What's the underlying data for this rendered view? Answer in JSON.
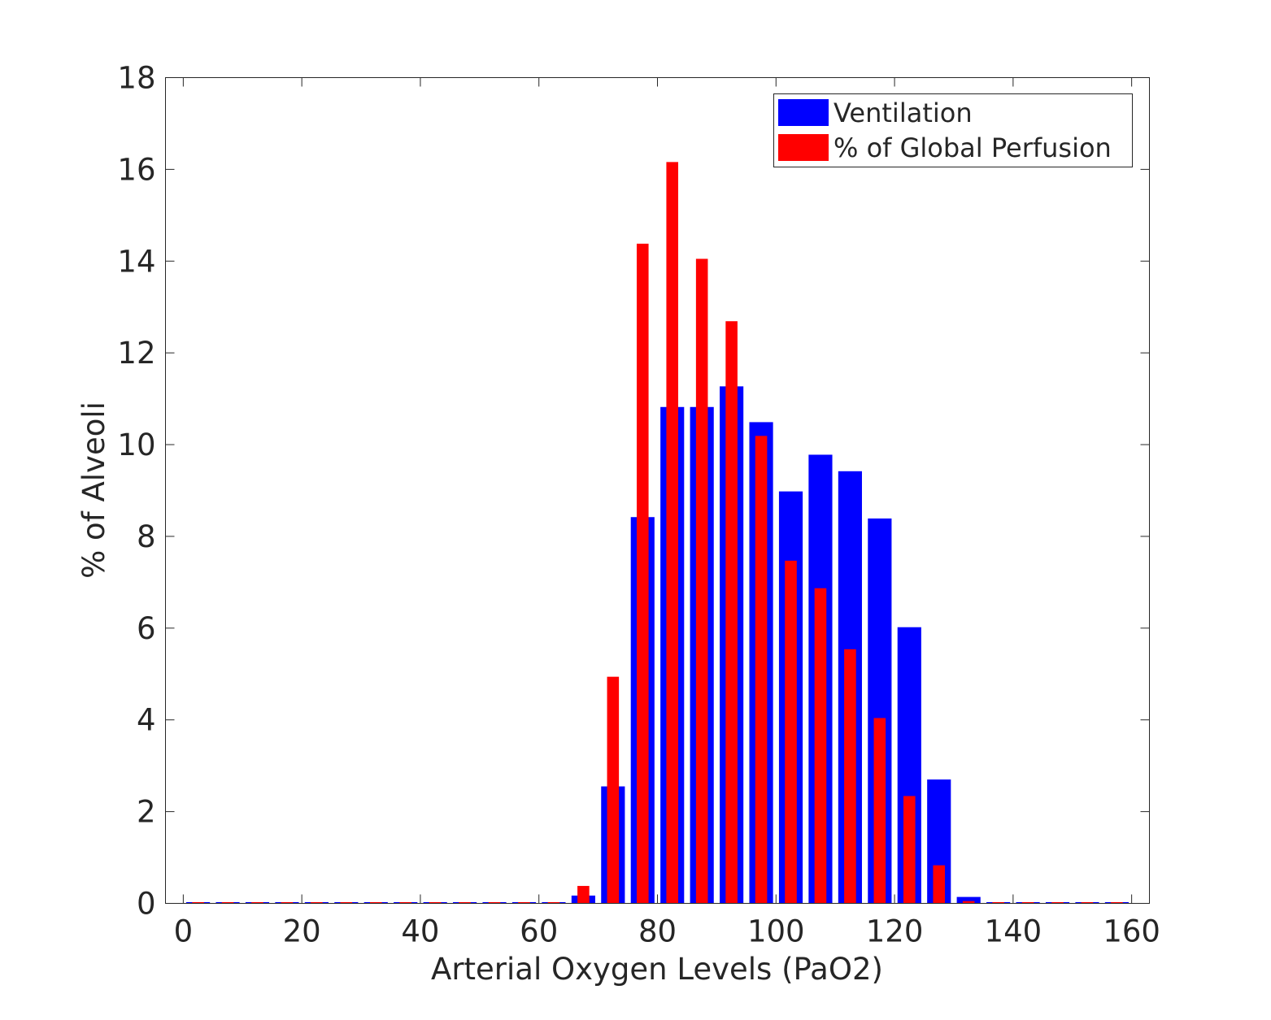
{
  "chart_data": {
    "type": "bar",
    "xlabel": "Arterial Oxygen Levels (PaO2)",
    "ylabel": "% of Alveoli",
    "xlim": [
      -3,
      163
    ],
    "ylim": [
      0,
      18
    ],
    "x_ticks": [
      0,
      20,
      40,
      60,
      80,
      100,
      120,
      140,
      160
    ],
    "y_ticks": [
      0,
      2,
      4,
      6,
      8,
      10,
      12,
      14,
      16,
      18
    ],
    "grid": false,
    "legend_position": "top-right",
    "x": [
      2.5,
      7.5,
      12.5,
      17.5,
      22.5,
      27.5,
      32.5,
      37.5,
      42.5,
      47.5,
      52.5,
      57.5,
      62.5,
      67.5,
      72.5,
      77.5,
      82.5,
      87.5,
      92.5,
      97.5,
      102.5,
      107.5,
      112.5,
      117.5,
      122.5,
      127.5,
      132.5,
      137.5,
      142.5,
      147.5,
      152.5,
      157.5
    ],
    "series": [
      {
        "name": "Ventilation",
        "color": "#0000ff",
        "values": [
          0,
          0,
          0,
          0,
          0,
          0,
          0,
          0,
          0,
          0,
          0,
          0,
          0,
          0.17,
          2.55,
          8.42,
          10.82,
          10.82,
          11.27,
          10.49,
          8.98,
          9.78,
          9.42,
          8.39,
          6.02,
          2.7,
          0.14,
          0,
          0,
          0,
          0,
          0
        ]
      },
      {
        "name": "% of Global Perfusion",
        "color": "#ff0000",
        "values": [
          0,
          0,
          0,
          0,
          0,
          0,
          0,
          0,
          0,
          0,
          0,
          0,
          0,
          0.38,
          4.94,
          14.38,
          16.16,
          14.05,
          12.69,
          10.19,
          7.47,
          6.87,
          5.54,
          4.04,
          2.34,
          0.83,
          0.05,
          0,
          0,
          0,
          0,
          0
        ]
      }
    ]
  }
}
